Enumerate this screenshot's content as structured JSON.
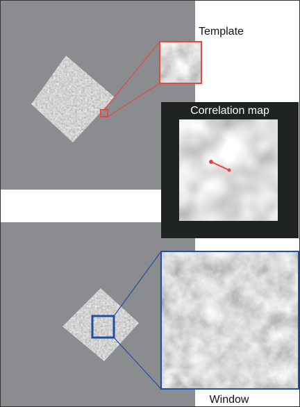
{
  "labels": {
    "template": "Template",
    "correlation_map": "Correlation map",
    "window": "Window"
  }
}
